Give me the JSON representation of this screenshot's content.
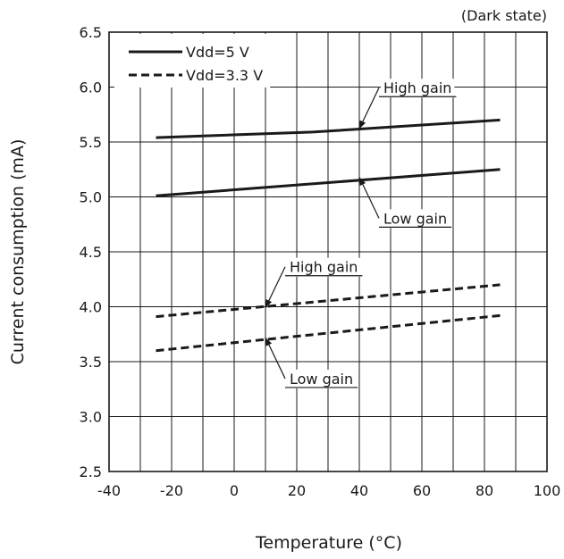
{
  "chart_data": {
    "type": "line",
    "title": "",
    "subtitle": "(Dark state)",
    "xlabel": "Temperature (°C)",
    "ylabel": "Current consumption (mA)",
    "xlim": [
      -40,
      100
    ],
    "ylim": [
      2.5,
      6.5
    ],
    "xticks": [
      "-40",
      "-20",
      "0",
      "20",
      "40",
      "60",
      "80",
      "100"
    ],
    "xtick_values": [
      -40,
      -20,
      0,
      20,
      40,
      60,
      80,
      100
    ],
    "yticks": [
      "2.5",
      "3.0",
      "3.5",
      "4.0",
      "4.5",
      "5.0",
      "5.5",
      "6.0",
      "6.5"
    ],
    "ytick_values": [
      2.5,
      3.0,
      3.5,
      4.0,
      4.5,
      5.0,
      5.5,
      6.0,
      6.5
    ],
    "grid": true,
    "minor_x_step": 10,
    "legend": {
      "placement": "top-left",
      "entries": [
        {
          "label": "Vdd=5 V",
          "style": "solid"
        },
        {
          "label": "Vdd=3.3 V",
          "style": "dashed"
        }
      ]
    },
    "series": [
      {
        "group": "Vdd=5 V",
        "gain": "High gain",
        "style": "solid",
        "x": [
          -25,
          25,
          85
        ],
        "y": [
          5.54,
          5.59,
          5.7
        ]
      },
      {
        "group": "Vdd=5 V",
        "gain": "Low gain",
        "style": "solid",
        "x": [
          -25,
          85
        ],
        "y": [
          5.01,
          5.25
        ]
      },
      {
        "group": "Vdd=3.3 V",
        "gain": "High gain",
        "style": "dashed",
        "x": [
          -25,
          85
        ],
        "y": [
          3.91,
          4.2
        ]
      },
      {
        "group": "Vdd=3.3 V",
        "gain": "Low gain",
        "style": "dashed",
        "x": [
          -25,
          85
        ],
        "y": [
          3.6,
          3.92
        ]
      }
    ],
    "annotations": [
      {
        "text": "High gain",
        "series_index": 0,
        "point": [
          40,
          5.62
        ],
        "placement": "above-right"
      },
      {
        "text": "Low gain",
        "series_index": 1,
        "point": [
          40,
          5.18
        ],
        "placement": "below-right"
      },
      {
        "text": "High gain",
        "series_index": 2,
        "point": [
          10,
          3.99
        ],
        "placement": "above-right"
      },
      {
        "text": "Low gain",
        "series_index": 3,
        "point": [
          10,
          3.72
        ],
        "placement": "below-right"
      }
    ],
    "colors": {
      "line": "#1a1a1a",
      "grid": "#1a1a1a",
      "background": "#ffffff"
    }
  }
}
